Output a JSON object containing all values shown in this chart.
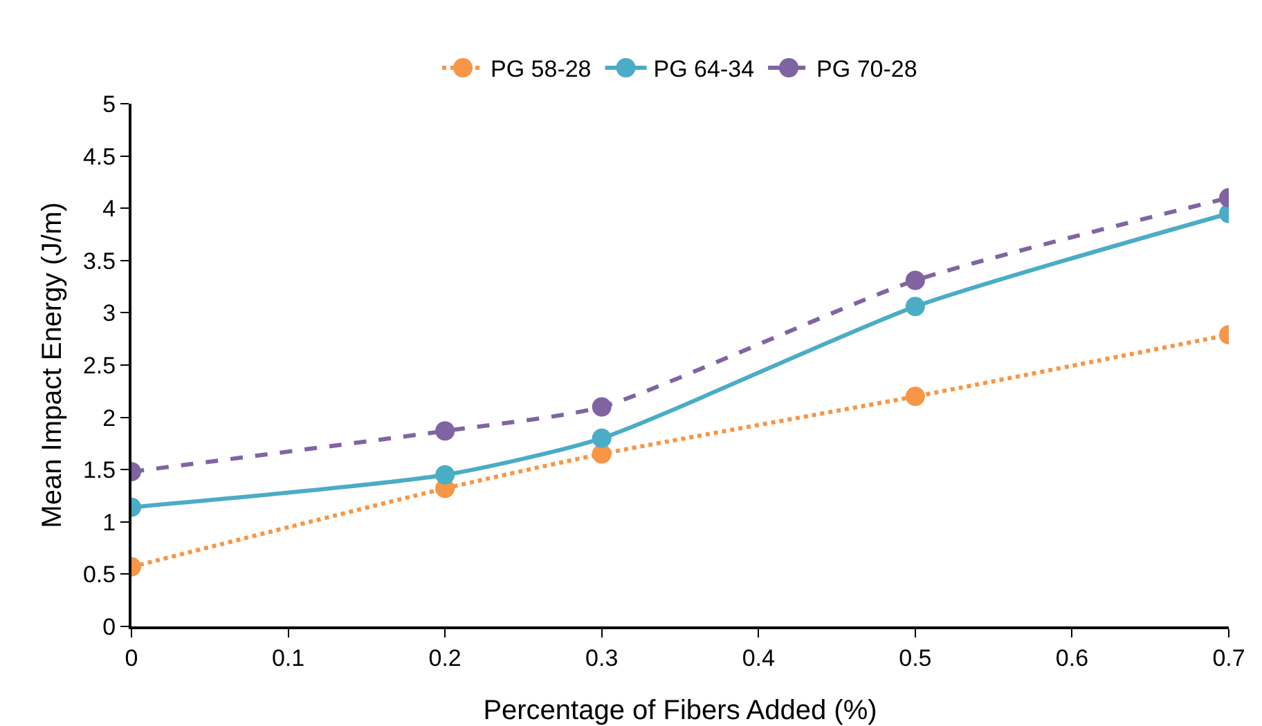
{
  "chart_data": {
    "type": "line",
    "xlabel": "Percentage of Fibers Added (%)",
    "ylabel": "Mean Impact Energy (J/m)",
    "x": [
      0,
      0.2,
      0.3,
      0.5,
      0.7
    ],
    "series": [
      {
        "name": "PG 58-28",
        "color": "#f79646",
        "line_style": "dotted",
        "values": [
          0.57,
          1.32,
          1.65,
          2.2,
          2.79
        ]
      },
      {
        "name": "PG 64-34",
        "color": "#4bacc6",
        "line_style": "solid",
        "values": [
          1.14,
          1.45,
          1.8,
          3.06,
          3.95
        ]
      },
      {
        "name": "PG 70-28",
        "color": "#8064a2",
        "line_style": "dashed",
        "values": [
          1.48,
          1.87,
          2.1,
          3.31,
          4.1
        ]
      }
    ],
    "xlim": [
      0,
      0.7
    ],
    "xticks": [
      0,
      0.1,
      0.2,
      0.3,
      0.4,
      0.5,
      0.6,
      0.7
    ],
    "ylim": [
      0,
      5
    ],
    "yticks": [
      0,
      0.5,
      1,
      1.5,
      2,
      2.5,
      3,
      3.5,
      4,
      4.5,
      5
    ],
    "grid": false,
    "legend": "top",
    "marker": "circle"
  }
}
